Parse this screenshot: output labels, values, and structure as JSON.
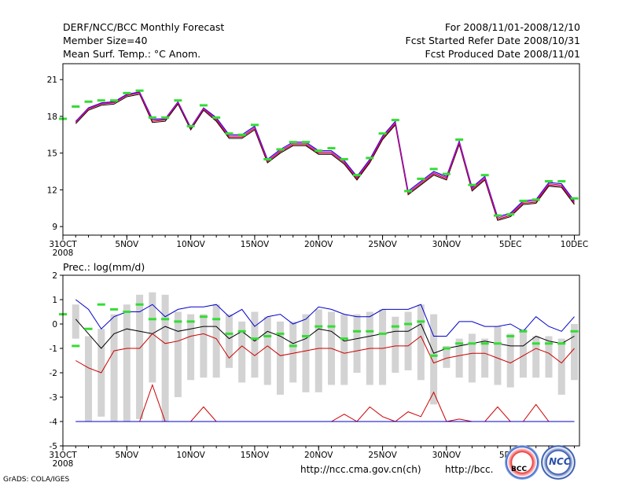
{
  "header": {
    "title": "DERF/NCC/BCC Monthly Forecast",
    "member": "Member Size=40",
    "variable": "Mean Surf. Temp.: °C Anom.",
    "period": "For 2008/11/01-2008/12/10",
    "started": "Fcst Started Refer Date 2008/10/31",
    "produced": "Fcst Produced Date 2008/11/01"
  },
  "footer": {
    "url1": "http://ncc.cma.gov.cn(ch)",
    "url2": "http://bcc.",
    "grads": "GrADS: COLA/IGES",
    "logo1": "BCC",
    "logo2": "NCC"
  },
  "colors": {
    "blue": "#0000cc",
    "red": "#cc0000",
    "black": "#000000",
    "green": "#33dd33",
    "gray": "#d3d3d3"
  },
  "chart_data": [
    {
      "type": "line",
      "title": "Mean Surf. Temp.: °C Anom.",
      "x": [
        0,
        1,
        2,
        3,
        4,
        5,
        6,
        7,
        8,
        9,
        10,
        11,
        12,
        13,
        14,
        15,
        16,
        17,
        18,
        19,
        20,
        21,
        22,
        23,
        24,
        25,
        26,
        27,
        28,
        29,
        30,
        31,
        32,
        33,
        34,
        35,
        36,
        37,
        38,
        39,
        40
      ],
      "xticks": [
        {
          "pos": 0,
          "label": "31OCT"
        },
        {
          "pos": 5,
          "label": "5NOV"
        },
        {
          "pos": 10,
          "label": "10NOV"
        },
        {
          "pos": 15,
          "label": "15NOV"
        },
        {
          "pos": 20,
          "label": "20NOV"
        },
        {
          "pos": 25,
          "label": "25NOV"
        },
        {
          "pos": 30,
          "label": "30NOV"
        },
        {
          "pos": 35,
          "label": "5DEC"
        },
        {
          "pos": 40,
          "label": "10DEC"
        }
      ],
      "year_label": "2008",
      "yticks": [
        9,
        12,
        15,
        18,
        21
      ],
      "ylim": [
        8.3,
        22.3
      ],
      "xlim": [
        0,
        40.4
      ],
      "series": [
        {
          "name": "mean",
          "color": "#000000",
          "values": [
            null,
            17.4,
            18.5,
            18.9,
            19.0,
            19.6,
            19.8,
            17.5,
            17.6,
            19.0,
            16.9,
            18.5,
            17.6,
            16.2,
            16.2,
            16.9,
            14.2,
            15.0,
            15.6,
            15.6,
            14.9,
            14.9,
            14.1,
            12.8,
            14.2,
            16.1,
            17.3,
            11.6,
            12.4,
            13.2,
            12.8,
            15.7,
            11.9,
            12.8,
            9.5,
            9.8,
            10.8,
            10.9,
            12.3,
            12.2,
            10.8
          ]
        },
        {
          "name": "upper",
          "color": "#0000cc",
          "values": [
            null,
            17.6,
            18.7,
            19.1,
            19.2,
            19.8,
            20.0,
            17.8,
            17.8,
            19.2,
            17.1,
            18.7,
            17.9,
            16.5,
            16.5,
            17.2,
            14.5,
            15.3,
            15.9,
            15.9,
            15.2,
            15.2,
            14.4,
            13.1,
            14.5,
            16.4,
            17.6,
            11.9,
            12.7,
            13.5,
            13.1,
            16.0,
            12.2,
            13.1,
            9.8,
            10.1,
            11.1,
            11.2,
            12.6,
            12.5,
            11.1
          ]
        },
        {
          "name": "lower",
          "color": "#cc0000",
          "values": [
            null,
            17.5,
            18.6,
            19.0,
            19.1,
            19.7,
            19.9,
            17.6,
            17.7,
            19.1,
            17.0,
            18.6,
            17.7,
            16.3,
            16.3,
            17.0,
            14.3,
            15.1,
            15.7,
            15.7,
            15.0,
            15.0,
            14.2,
            12.9,
            14.3,
            16.2,
            17.4,
            11.7,
            12.5,
            13.3,
            12.9,
            15.8,
            12.0,
            12.9,
            9.6,
            9.9,
            10.9,
            11.0,
            12.4,
            12.3,
            10.9
          ]
        },
        {
          "name": "mid",
          "color": "#cc00cc",
          "values": [
            null,
            17.55,
            18.65,
            19.05,
            19.15,
            19.75,
            19.95,
            17.7,
            17.75,
            19.15,
            17.05,
            18.65,
            17.8,
            16.4,
            16.4,
            17.1,
            14.4,
            15.2,
            15.8,
            15.8,
            15.1,
            15.1,
            14.3,
            13.0,
            14.4,
            16.3,
            17.5,
            11.8,
            12.6,
            13.4,
            13.0,
            15.9,
            12.1,
            13.0,
            9.7,
            10.0,
            11.0,
            11.1,
            12.5,
            12.4,
            11.0
          ]
        }
      ],
      "observed": [
        17.8,
        18.8,
        19.2,
        19.3,
        19.3,
        19.9,
        20.1,
        17.9,
        17.9,
        19.3,
        17.2,
        18.9,
        17.9,
        16.6,
        16.5,
        17.3,
        14.5,
        15.3,
        15.9,
        15.9,
        15.2,
        15.4,
        14.5,
        13.2,
        14.6,
        16.6,
        17.7,
        11.9,
        12.9,
        13.7,
        13.3,
        16.1,
        12.4,
        13.2,
        9.9,
        10.0,
        11.1,
        11.2,
        12.7,
        12.7,
        11.3
      ]
    },
    {
      "type": "box",
      "title": "Prec.: log(mm/d)",
      "x": [
        0,
        1,
        2,
        3,
        4,
        5,
        6,
        7,
        8,
        9,
        10,
        11,
        12,
        13,
        14,
        15,
        16,
        17,
        18,
        19,
        20,
        21,
        22,
        23,
        24,
        25,
        26,
        27,
        28,
        29,
        30,
        31,
        32,
        33,
        34,
        35,
        36,
        37,
        38,
        39,
        40
      ],
      "xticks": [
        {
          "pos": 0,
          "label": "31OCT"
        },
        {
          "pos": 5,
          "label": "5NOV"
        },
        {
          "pos": 10,
          "label": "10NOV"
        },
        {
          "pos": 15,
          "label": "15NOV"
        },
        {
          "pos": 20,
          "label": "20NOV"
        },
        {
          "pos": 25,
          "label": "25NOV"
        },
        {
          "pos": 30,
          "label": "30NOV"
        },
        {
          "pos": 35,
          "label": "5DEC"
        }
      ],
      "year_label": "2008",
      "yticks": [
        -5,
        -4,
        -3,
        -2,
        -1,
        0,
        1,
        2
      ],
      "ylim": [
        -5,
        2
      ],
      "xlim": [
        0,
        40.4
      ],
      "boxes_top": [
        null,
        0.8,
        -0.5,
        -0.2,
        0.4,
        0.8,
        1.2,
        1.3,
        1.2,
        0.5,
        0.4,
        0.4,
        0.8,
        0.4,
        0.1,
        0.5,
        0.3,
        0.1,
        0.1,
        0.4,
        0.6,
        0.5,
        0.4,
        0.4,
        0.5,
        0.6,
        0.3,
        0.5,
        0.8,
        0.4,
        -0.9,
        -0.6,
        -0.4,
        -0.6,
        -0.1,
        -0.4,
        -0.2,
        -0.5,
        -0.5,
        -0.6,
        0.0
      ],
      "boxes_bottom": [
        null,
        -0.6,
        -4.0,
        -3.8,
        -4.0,
        -4.0,
        -3.9,
        -2.4,
        -4.0,
        -3.0,
        -2.3,
        -2.2,
        -2.2,
        -1.8,
        -2.4,
        -2.2,
        -2.5,
        -2.9,
        -2.4,
        -2.8,
        -2.8,
        -2.5,
        -2.5,
        -2.0,
        -2.5,
        -2.5,
        -2.0,
        -1.9,
        -2.3,
        -3.3,
        -1.8,
        -2.2,
        -2.4,
        -2.2,
        -2.5,
        -2.6,
        -2.2,
        -2.2,
        -2.2,
        -2.9,
        -2.3
      ],
      "series": [
        {
          "name": "max",
          "color": "#0000cc",
          "values": [
            null,
            1.0,
            0.6,
            -0.2,
            0.3,
            0.5,
            0.5,
            0.8,
            0.3,
            0.6,
            0.7,
            0.7,
            0.8,
            0.3,
            0.6,
            -0.1,
            0.3,
            0.4,
            0.0,
            0.2,
            0.7,
            0.6,
            0.4,
            0.3,
            0.3,
            0.6,
            0.6,
            0.6,
            0.8,
            -0.5,
            -0.5,
            0.1,
            0.1,
            -0.1,
            -0.1,
            0.0,
            -0.3,
            0.3,
            -0.1,
            -0.3,
            0.3
          ]
        },
        {
          "name": "median",
          "color": "#000000",
          "values": [
            null,
            0.2,
            -0.4,
            -1.0,
            -0.4,
            -0.2,
            -0.3,
            -0.4,
            -0.1,
            -0.3,
            -0.2,
            -0.1,
            -0.1,
            -0.6,
            -0.3,
            -0.7,
            -0.3,
            -0.5,
            -0.8,
            -0.6,
            -0.2,
            -0.3,
            -0.7,
            -0.6,
            -0.5,
            -0.4,
            -0.3,
            -0.3,
            0.0,
            -1.2,
            -1.0,
            -0.9,
            -0.8,
            -0.7,
            -0.8,
            -0.9,
            -0.9,
            -0.5,
            -0.7,
            -0.8,
            -0.5
          ]
        },
        {
          "name": "min",
          "color": "#cc0000",
          "values": [
            null,
            -1.5,
            -1.8,
            -2.0,
            -1.1,
            -1.0,
            -1.0,
            -0.4,
            -0.8,
            -0.7,
            -0.5,
            -0.4,
            -0.6,
            -1.4,
            -0.9,
            -1.3,
            -0.9,
            -1.3,
            -1.2,
            -1.1,
            -1.0,
            -1.0,
            -1.2,
            -1.1,
            -1.0,
            -1.0,
            -0.9,
            -0.9,
            -0.5,
            -1.6,
            -1.4,
            -1.3,
            -1.2,
            -1.2,
            -1.4,
            -1.6,
            -1.3,
            -1.0,
            -1.2,
            -1.6,
            -1.0
          ]
        },
        {
          "name": "low",
          "color": "#cc0000",
          "values": [
            null,
            -4.0,
            -4.0,
            -4.0,
            -4.0,
            -4.0,
            -4.0,
            -2.5,
            -4.0,
            -4.0,
            -4.0,
            -3.4,
            -4.0,
            -4.0,
            -4.0,
            -4.0,
            -4.0,
            -4.0,
            -4.0,
            -4.0,
            -4.0,
            -4.0,
            -3.7,
            -4.0,
            -3.4,
            -3.8,
            -4.0,
            -3.6,
            -3.8,
            -2.8,
            -4.0,
            -3.9,
            -4.0,
            -4.0,
            -3.4,
            -4.0,
            -4.0,
            -3.3,
            -4.0,
            -4.0,
            -4.0
          ]
        },
        {
          "name": "floor",
          "color": "#0000cc",
          "values": [
            null,
            -4.0,
            -4.0,
            -4.0,
            -4.0,
            -4.0,
            -4.0,
            -4.0,
            -4.0,
            -4.0,
            -4.0,
            -4.0,
            -4.0,
            -4.0,
            -4.0,
            -4.0,
            -4.0,
            -4.0,
            -4.0,
            -4.0,
            -4.0,
            -4.0,
            -4.0,
            -4.0,
            -4.0,
            -4.0,
            -4.0,
            -4.0,
            -4.0,
            -4.0,
            -4.0,
            -4.0,
            -4.0,
            -4.0,
            -4.0,
            -4.0,
            -4.0,
            -4.0,
            -4.0,
            -4.0,
            -4.0
          ]
        }
      ],
      "observed": [
        0.4,
        -0.9,
        -0.2,
        0.8,
        0.6,
        0.5,
        0.8,
        0.2,
        0.2,
        0.1,
        0.1,
        0.3,
        0.2,
        -0.4,
        -0.3,
        -0.6,
        -0.5,
        -0.4,
        -0.9,
        -0.5,
        -0.1,
        -0.1,
        -0.6,
        -0.3,
        -0.3,
        -0.4,
        -0.1,
        0.0,
        0.1,
        -1.3,
        -1.0,
        -0.8,
        -0.8,
        -0.8,
        -0.8,
        -0.5,
        -0.3,
        -0.8,
        -0.8,
        -0.8,
        -0.3
      ]
    }
  ]
}
